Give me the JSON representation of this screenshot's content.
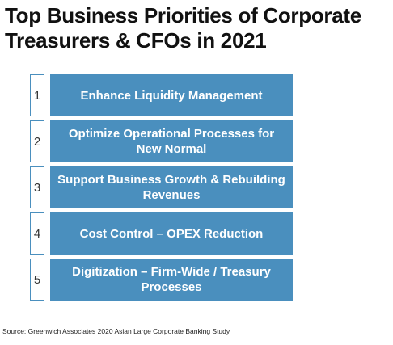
{
  "title": "Top Business Priorities of Corporate Treasurers & CFOs in 2021",
  "priorities": [
    {
      "num": "1",
      "label": "Enhance Liquidity Management"
    },
    {
      "num": "2",
      "label": "Optimize Operational Processes for New Normal"
    },
    {
      "num": "3",
      "label": "Support Business Growth & Rebuilding Revenues"
    },
    {
      "num": "4",
      "label": "Cost Control – OPEX Reduction"
    },
    {
      "num": "5",
      "label": "Digitization – Firm-Wide / Treasury Processes"
    }
  ],
  "source": "Source: Greenwich Associates 2020 Asian Large Corporate Banking Study",
  "colors": {
    "accent": "#4a8fbe"
  }
}
